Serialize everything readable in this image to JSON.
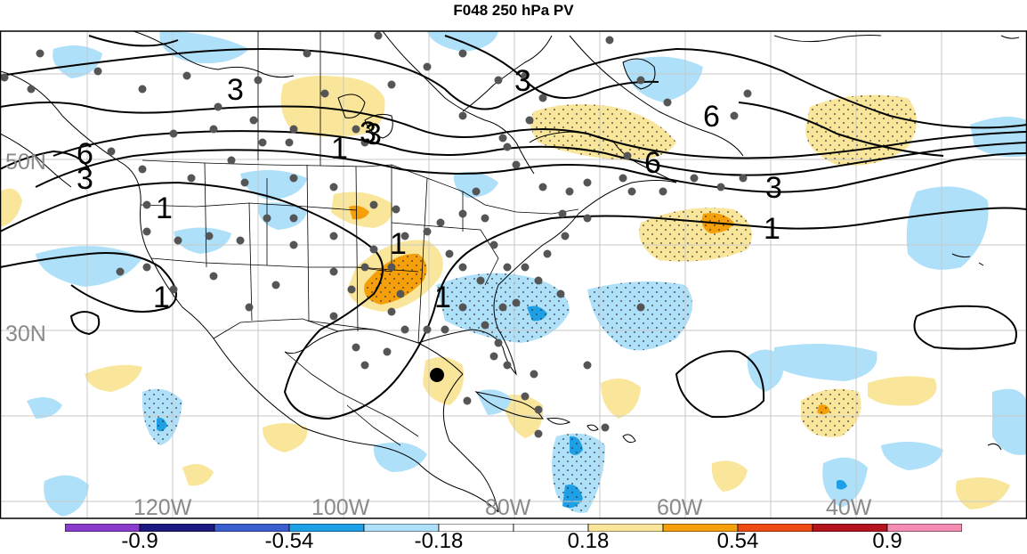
{
  "title": "F048 250 hPa PV",
  "axes": {
    "lat_labels": [
      "50N",
      "30N"
    ],
    "lon_labels": [
      "120W",
      "100W",
      "80W",
      "60W",
      "40W"
    ]
  },
  "contour_labels": [
    "3",
    "3",
    "1",
    "3",
    "3",
    "6",
    "6",
    "3",
    "6",
    "3",
    "1",
    "1",
    "1",
    "1",
    "1"
  ],
  "colorbar": {
    "tick_labels": [
      "-0.9",
      "-0.54",
      "-0.18",
      "0.18",
      "0.54",
      "0.9"
    ],
    "colors": [
      "#8a3ccc",
      "#1a1a80",
      "#3a5fcd",
      "#1ea0e6",
      "#aee0fa",
      "#ffffff",
      "#ffffff",
      "#fae69a",
      "#f5a00a",
      "#f04a14",
      "#b4141e",
      "#f58cb4"
    ]
  },
  "colors": {
    "positive_light": "#fae69a",
    "positive_mid": "#f5a00a",
    "negative_light": "#aee0fa",
    "negative_mid": "#1ea0e6",
    "grid": "#c8c8c8",
    "station_dot": "#555555",
    "highlight_dot": "#000000"
  }
}
